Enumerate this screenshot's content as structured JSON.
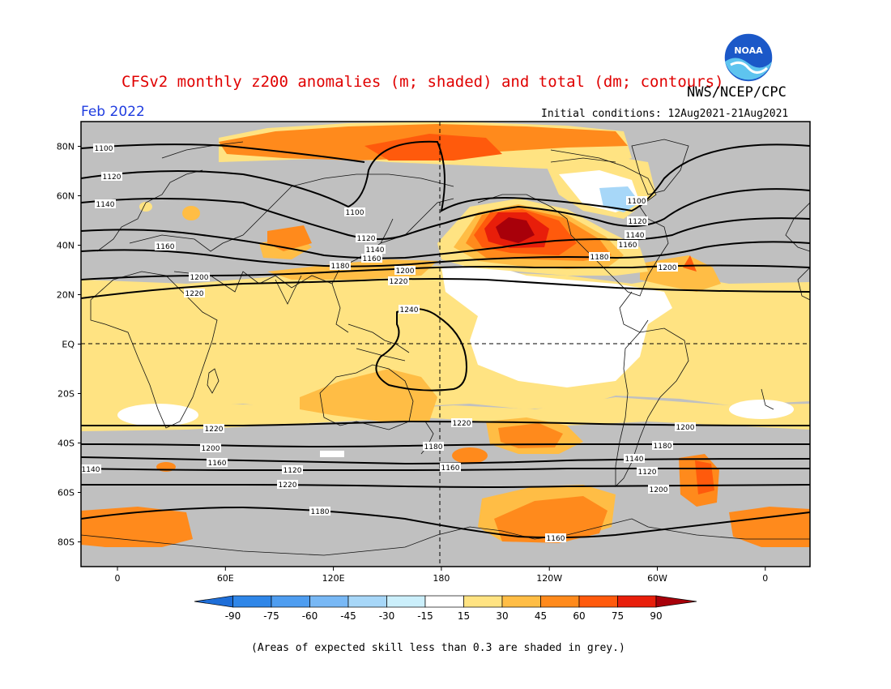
{
  "header": {
    "title": "CFSv2 monthly z200 anomalies (m; shaded) and total (dm; contours)",
    "org": "NWS/NCEP/CPC",
    "month": "Feb 2022",
    "initial_conditions": "Initial conditions: 12Aug2021-21Aug2021",
    "logo_text": "NOAA"
  },
  "footnote": "(Areas of expected skill less than 0.3 are shaded in grey.)",
  "map": {
    "lat_ticks": [
      "80N",
      "60N",
      "40N",
      "20N",
      "EQ",
      "20S",
      "40S",
      "60S",
      "80S"
    ],
    "lon_ticks": [
      "0",
      "60E",
      "120E",
      "180",
      "120W",
      "60W",
      "0"
    ],
    "contour_labels": [
      "1100",
      "1100",
      "1100",
      "1120",
      "1120",
      "1120",
      "1140",
      "1140",
      "1140",
      "1160",
      "1160",
      "1160",
      "1180",
      "1180",
      "1200",
      "1200",
      "1200",
      "1220",
      "1220",
      "1240",
      "1220",
      "1220",
      "1200",
      "1200",
      "1180",
      "1180",
      "1160",
      "1160",
      "1140",
      "1140",
      "1120",
      "1120",
      "1220",
      "1200",
      "1180",
      "1160",
      "1140",
      "1120"
    ]
  },
  "colorbar": {
    "levels": [
      "-90",
      "-75",
      "-60",
      "-45",
      "-30",
      "-15",
      "15",
      "30",
      "45",
      "60",
      "75",
      "90"
    ],
    "colors": [
      "#1e6ed8",
      "#2f86e8",
      "#4e9df0",
      "#78b8f5",
      "#a7d7f8",
      "#cbeffb",
      "#ffffff",
      "#ffe382",
      "#ffbd45",
      "#ff8a1c",
      "#ff5a0c",
      "#e81e0a",
      "#a8000a"
    ]
  },
  "colors": {
    "grey": "#c0c0c0",
    "title": "#e00000",
    "month": "#1f3ce0"
  }
}
